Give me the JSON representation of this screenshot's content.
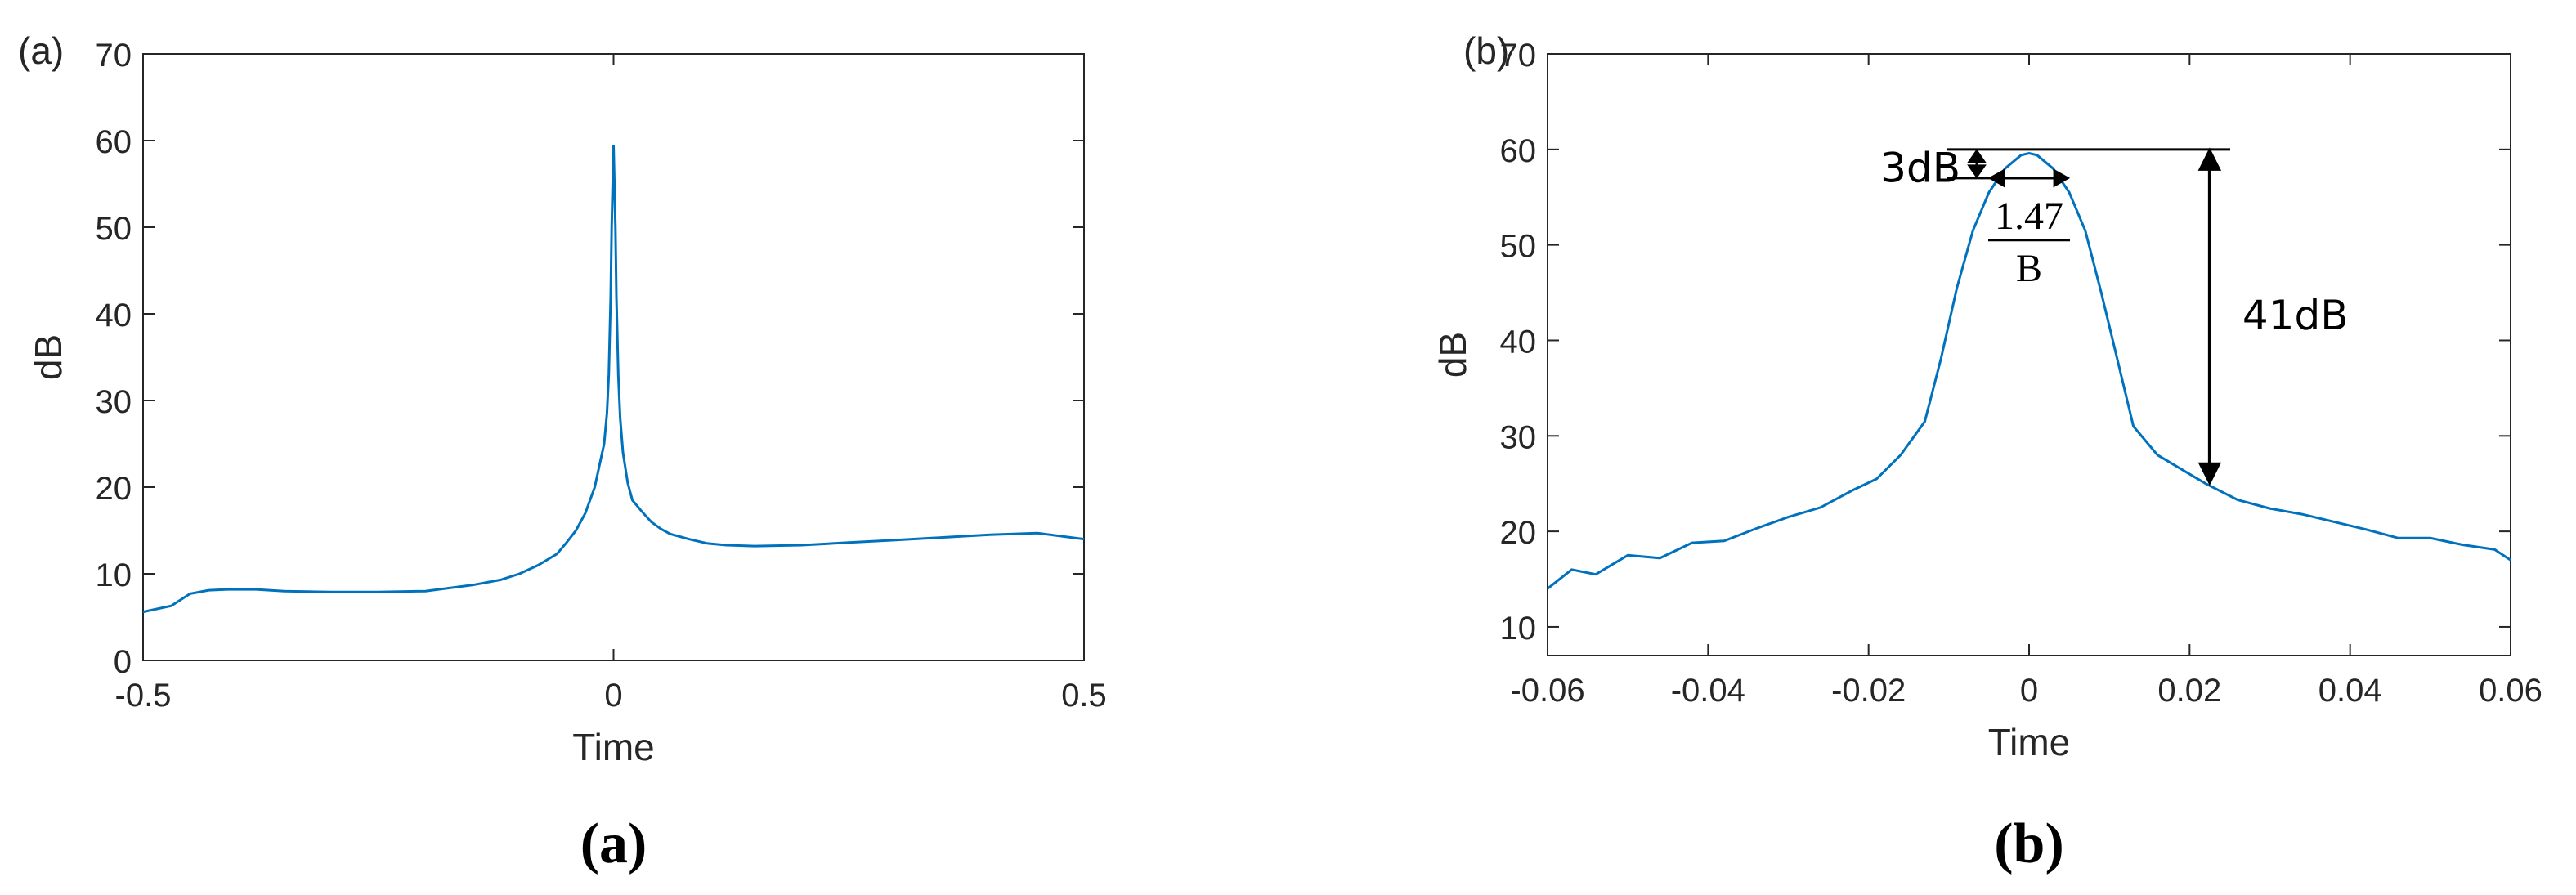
{
  "colors": {
    "line": "#0072BD",
    "axis": "#262626",
    "annotation": "#000000"
  },
  "chart_data": [
    {
      "type": "line",
      "panel_label": "(a)",
      "caption": "(a)",
      "title": "",
      "xlabel": "Time",
      "ylabel": "dB",
      "xlim": [
        -0.5,
        0.5
      ],
      "ylim": [
        0,
        70
      ],
      "xticks": [
        -0.5,
        0,
        0.5
      ],
      "xtick_labels": [
        "-0.5",
        "0",
        "0.5"
      ],
      "yticks": [
        0,
        10,
        20,
        30,
        40,
        50,
        60,
        70
      ],
      "ytick_labels": [
        "0",
        "10",
        "20",
        "30",
        "40",
        "50",
        "60",
        "70"
      ],
      "grid": false,
      "series": [
        {
          "x": [
            -0.5,
            -0.47,
            -0.45,
            -0.43,
            -0.41,
            -0.38,
            -0.35,
            -0.3,
            -0.25,
            -0.2,
            -0.15,
            -0.12,
            -0.1,
            -0.08,
            -0.06,
            -0.05,
            -0.04,
            -0.03,
            -0.02,
            -0.015,
            -0.01,
            -0.007,
            -0.005,
            -0.003,
            -0.002,
            0,
            0.002,
            0.003,
            0.005,
            0.007,
            0.01,
            0.015,
            0.02,
            0.03,
            0.04,
            0.05,
            0.06,
            0.08,
            0.1,
            0.12,
            0.15,
            0.2,
            0.25,
            0.3,
            0.35,
            0.4,
            0.45,
            0.5
          ],
          "y": [
            5.6,
            6.3,
            7.7,
            8.1,
            8.2,
            8.2,
            8.0,
            7.9,
            7.9,
            8.0,
            8.7,
            9.3,
            10.0,
            11.0,
            12.3,
            13.6,
            15.0,
            17.0,
            20.0,
            22.5,
            25.0,
            28.5,
            33.0,
            42.0,
            50.0,
            59.5,
            50.0,
            42.0,
            33.0,
            28.0,
            24.0,
            20.5,
            18.5,
            17.2,
            16.0,
            15.2,
            14.6,
            14.0,
            13.5,
            13.3,
            13.2,
            13.3,
            13.6,
            13.9,
            14.2,
            14.5,
            14.7,
            14.0
          ]
        }
      ]
    },
    {
      "type": "line",
      "panel_label": "(b)",
      "caption": "(b)",
      "title": "",
      "xlabel": "Time",
      "ylabel": "dB",
      "xlim": [
        -0.06,
        0.06
      ],
      "ylim": [
        7,
        70
      ],
      "xticks": [
        -0.06,
        -0.04,
        -0.02,
        0,
        0.02,
        0.04,
        0.06
      ],
      "xtick_labels": [
        "-0.06",
        "-0.04",
        "-0.02",
        "0",
        "0.02",
        "0.04",
        "0.06"
      ],
      "yticks": [
        10,
        20,
        30,
        40,
        50,
        60,
        70
      ],
      "ytick_labels": [
        "10",
        "20",
        "30",
        "40",
        "50",
        "60",
        "70"
      ],
      "grid": false,
      "series": [
        {
          "x": [
            -0.06,
            -0.057,
            -0.054,
            -0.05,
            -0.046,
            -0.042,
            -0.038,
            -0.034,
            -0.03,
            -0.026,
            -0.022,
            -0.019,
            -0.016,
            -0.013,
            -0.011,
            -0.009,
            -0.007,
            -0.005,
            -0.003,
            -0.001,
            0,
            0.001,
            0.003,
            0.005,
            0.007,
            0.009,
            0.011,
            0.013,
            0.016,
            0.019,
            0.022,
            0.026,
            0.03,
            0.034,
            0.038,
            0.042,
            0.046,
            0.05,
            0.054,
            0.058,
            0.06
          ],
          "y": [
            14.0,
            16.0,
            15.5,
            17.5,
            17.2,
            18.8,
            19.0,
            20.3,
            21.5,
            22.5,
            24.3,
            25.5,
            28.0,
            31.5,
            38.0,
            45.5,
            51.5,
            55.5,
            58.0,
            59.4,
            59.6,
            59.4,
            58.0,
            55.5,
            51.5,
            45.0,
            38.0,
            31.0,
            28.0,
            26.5,
            25.0,
            23.3,
            22.4,
            21.8,
            21.0,
            20.2,
            19.3,
            19.3,
            18.6,
            18.1,
            17.0
          ]
        }
      ],
      "annotations": {
        "db3_label": "3dB",
        "width_numerator": "1.47",
        "width_denominator": "B",
        "db41_label": "41dB",
        "peak_db": 60,
        "minus3_db": 57,
        "drop_db": 25,
        "drop_time": 0.0225,
        "width_half": 0.005
      }
    }
  ]
}
